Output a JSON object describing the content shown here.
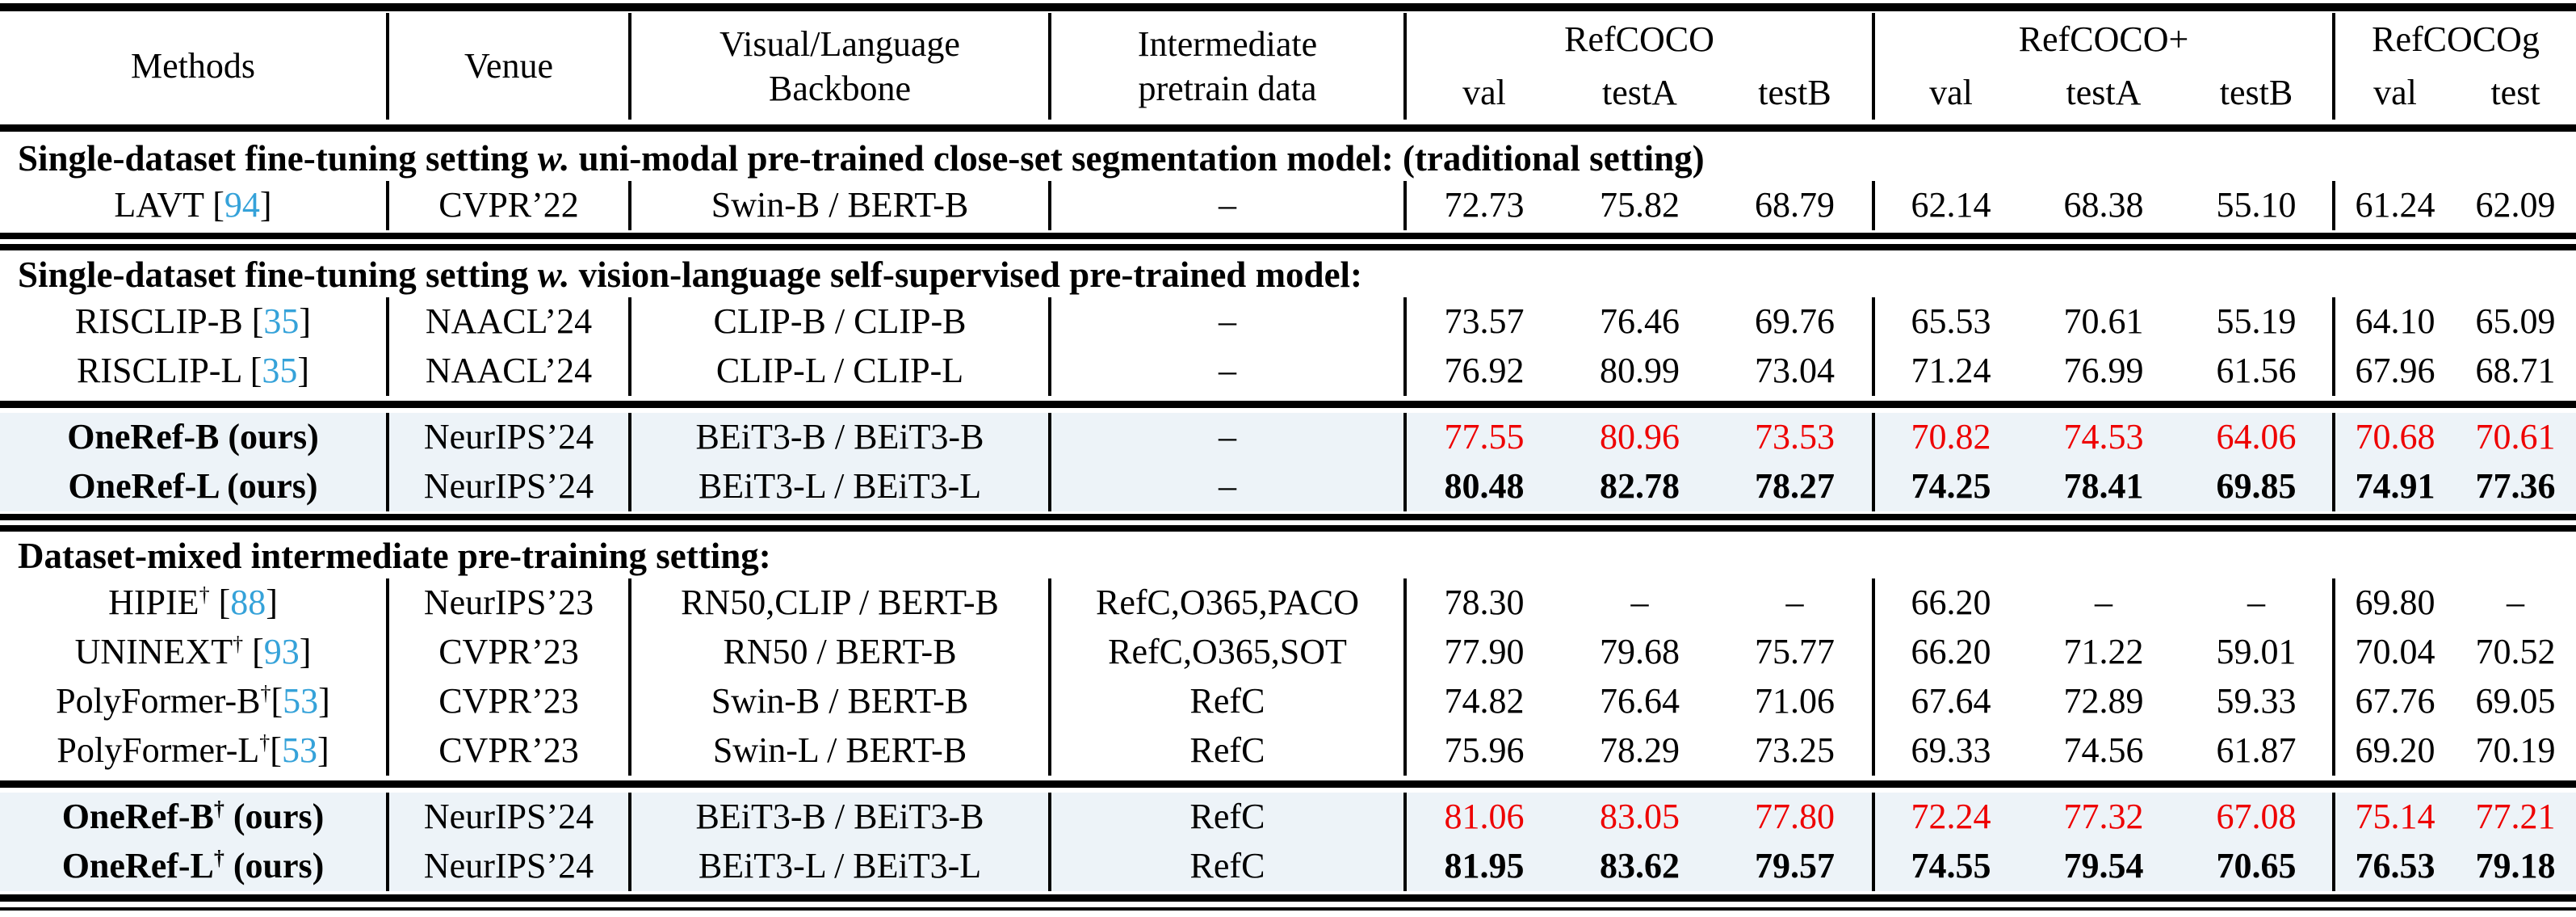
{
  "colors": {
    "citation_link": "#35a2d9",
    "best_value": "#ee0000",
    "highlight_row_bg": "#edf3f8"
  },
  "header": {
    "methods": "Methods",
    "venue": "Venue",
    "backbone": [
      "Visual/Language",
      "Backbone"
    ],
    "pretrain": [
      "Intermediate",
      "pretrain data"
    ],
    "groups": [
      {
        "label": "RefCOCO",
        "subs": [
          "val",
          "testA",
          "testB"
        ]
      },
      {
        "label": "RefCOCO+",
        "subs": [
          "val",
          "testA",
          "testB"
        ]
      },
      {
        "label": "RefCOCOg",
        "subs": [
          "val",
          "test"
        ]
      }
    ]
  },
  "body": [
    {
      "type": "title",
      "parts": [
        {
          "text": "Single-dataset fine-tuning setting ",
          "italic": false
        },
        {
          "text": "w.",
          "italic": true
        },
        {
          "text": " uni-modal pre-trained close-set segmentation model: (traditional setting)",
          "italic": false
        }
      ]
    },
    {
      "type": "row",
      "highlight": false,
      "value_style": "plain",
      "method": {
        "name": "LAVT",
        "bold": false,
        "dagger": false,
        "suffix": "",
        "cite": "94",
        "cite_gap": true
      },
      "venue": "CVPR’22",
      "backbone": "Swin-B / BERT-B",
      "pretrain": "–",
      "values": [
        "72.73",
        "75.82",
        "68.79",
        "62.14",
        "68.38",
        "55.10",
        "61.24",
        "62.09"
      ]
    },
    {
      "type": "rule",
      "style": "double"
    },
    {
      "type": "title",
      "parts": [
        {
          "text": "Single-dataset fine-tuning setting ",
          "italic": false
        },
        {
          "text": "w.",
          "italic": true
        },
        {
          "text": " vision-language self-supervised pre-trained model:",
          "italic": false
        }
      ]
    },
    {
      "type": "row",
      "highlight": false,
      "value_style": "plain",
      "method": {
        "name": "RISCLIP-B",
        "bold": false,
        "dagger": false,
        "suffix": "",
        "cite": "35",
        "cite_gap": true
      },
      "venue": "NAACL’24",
      "backbone": "CLIP-B / CLIP-B",
      "pretrain": "–",
      "values": [
        "73.57",
        "76.46",
        "69.76",
        "65.53",
        "70.61",
        "55.19",
        "64.10",
        "65.09"
      ]
    },
    {
      "type": "row",
      "highlight": false,
      "value_style": "plain",
      "method": {
        "name": "RISCLIP-L",
        "bold": false,
        "dagger": false,
        "suffix": "",
        "cite": "35",
        "cite_gap": true
      },
      "venue": "NAACL’24",
      "backbone": "CLIP-L / CLIP-L",
      "pretrain": "–",
      "values": [
        "76.92",
        "80.99",
        "73.04",
        "71.24",
        "76.99",
        "61.56",
        "67.96",
        "68.71"
      ]
    },
    {
      "type": "rule",
      "style": "single"
    },
    {
      "type": "row",
      "highlight": true,
      "value_style": "red",
      "method": {
        "name": "OneRef-B",
        "bold": true,
        "dagger": false,
        "suffix": " (ours)",
        "cite": null,
        "cite_gap": false
      },
      "venue": "NeurIPS’24",
      "backbone": "BEiT3-B / BEiT3-B",
      "pretrain": "–",
      "values": [
        "77.55",
        "80.96",
        "73.53",
        "70.82",
        "74.53",
        "64.06",
        "70.68",
        "70.61"
      ]
    },
    {
      "type": "row",
      "highlight": true,
      "value_style": "bold",
      "method": {
        "name": "OneRef-L",
        "bold": true,
        "dagger": false,
        "suffix": " (ours)",
        "cite": null,
        "cite_gap": false
      },
      "venue": "NeurIPS’24",
      "backbone": "BEiT3-L / BEiT3-L",
      "pretrain": "–",
      "values": [
        "80.48",
        "82.78",
        "78.27",
        "74.25",
        "78.41",
        "69.85",
        "74.91",
        "77.36"
      ]
    },
    {
      "type": "rule",
      "style": "double"
    },
    {
      "type": "title",
      "parts": [
        {
          "text": "Dataset-mixed intermediate pre-training setting:",
          "italic": false
        }
      ]
    },
    {
      "type": "row",
      "highlight": false,
      "value_style": "plain",
      "method": {
        "name": "HIPIE",
        "bold": false,
        "dagger": true,
        "suffix": "",
        "cite": "88",
        "cite_gap": true
      },
      "venue": "NeurIPS’23",
      "backbone": "RN50,CLIP / BERT-B",
      "pretrain": "RefC,O365,PACO",
      "values": [
        "78.30",
        "–",
        "–",
        "66.20",
        "–",
        "–",
        "69.80",
        "–"
      ]
    },
    {
      "type": "row",
      "highlight": false,
      "value_style": "plain",
      "method": {
        "name": "UNINEXT",
        "bold": false,
        "dagger": true,
        "suffix": "",
        "cite": "93",
        "cite_gap": true
      },
      "venue": "CVPR’23",
      "backbone": "RN50 / BERT-B",
      "pretrain": "RefC,O365,SOT",
      "values": [
        "77.90",
        "79.68",
        "75.77",
        "66.20",
        "71.22",
        "59.01",
        "70.04",
        "70.52"
      ]
    },
    {
      "type": "row",
      "highlight": false,
      "value_style": "plain",
      "method": {
        "name": "PolyFormer-B",
        "bold": false,
        "dagger": true,
        "suffix": "",
        "cite": "53",
        "cite_gap": false
      },
      "venue": "CVPR’23",
      "backbone": "Swin-B / BERT-B",
      "pretrain": "RefC",
      "values": [
        "74.82",
        "76.64",
        "71.06",
        "67.64",
        "72.89",
        "59.33",
        "67.76",
        "69.05"
      ]
    },
    {
      "type": "row",
      "highlight": false,
      "value_style": "plain",
      "method": {
        "name": "PolyFormer-L",
        "bold": false,
        "dagger": true,
        "suffix": "",
        "cite": "53",
        "cite_gap": false
      },
      "venue": "CVPR’23",
      "backbone": "Swin-L / BERT-B",
      "pretrain": "RefC",
      "values": [
        "75.96",
        "78.29",
        "73.25",
        "69.33",
        "74.56",
        "61.87",
        "69.20",
        "70.19"
      ]
    },
    {
      "type": "rule",
      "style": "single"
    },
    {
      "type": "row",
      "highlight": true,
      "value_style": "red",
      "method": {
        "name": "OneRef-B",
        "bold": true,
        "dagger": true,
        "suffix": " (ours)",
        "cite": null,
        "cite_gap": false
      },
      "venue": "NeurIPS’24",
      "backbone": "BEiT3-B / BEiT3-B",
      "pretrain": "RefC",
      "values": [
        "81.06",
        "83.05",
        "77.80",
        "72.24",
        "77.32",
        "67.08",
        "75.14",
        "77.21"
      ]
    },
    {
      "type": "row",
      "highlight": true,
      "value_style": "bold",
      "method": {
        "name": "OneRef-L",
        "bold": true,
        "dagger": true,
        "suffix": " (ours)",
        "cite": null,
        "cite_gap": false
      },
      "venue": "NeurIPS’24",
      "backbone": "BEiT3-L / BEiT3-L",
      "pretrain": "RefC",
      "values": [
        "81.95",
        "83.62",
        "79.57",
        "74.55",
        "79.54",
        "70.65",
        "76.53",
        "79.18"
      ]
    },
    {
      "type": "rule",
      "style": "bottom"
    }
  ]
}
